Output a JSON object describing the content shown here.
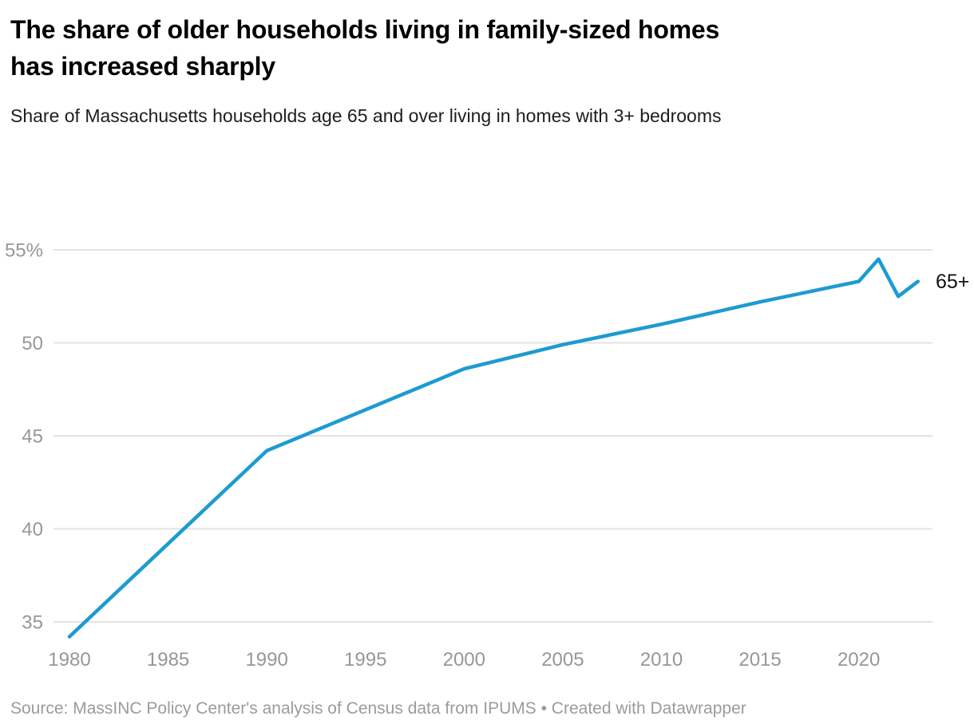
{
  "header": {
    "title_lines": [
      "The share of older households living in family-sized homes",
      "has increased sharply"
    ],
    "subtitle": "Share of Massachusetts households age 65 and over living in homes with 3+ bedrooms"
  },
  "chart_data": {
    "type": "line",
    "title": "The share of older households living in family-sized homes has increased sharply",
    "subtitle": "Share of Massachusetts households age 65 and over living in homes with 3+ bedrooms",
    "xlabel": "",
    "ylabel": "",
    "xlim": [
      1980,
      2023
    ],
    "ylim": [
      34,
      55
    ],
    "grid": "horizontal",
    "legend_position": "end-of-line-label",
    "line_color": "#1d9bd1",
    "grid_color": "#e3e3e3",
    "tick_color": "#979797",
    "x_ticks": [
      1980,
      1985,
      1990,
      1995,
      2000,
      2005,
      2010,
      2015,
      2020
    ],
    "y_ticks": [
      {
        "label": "55%",
        "value": 55
      },
      {
        "label": "50",
        "value": 50
      },
      {
        "label": "45",
        "value": 45
      },
      {
        "label": "40",
        "value": 40
      },
      {
        "label": "35",
        "value": 35
      }
    ],
    "series": [
      {
        "name": "65+",
        "x": [
          1980,
          1990,
          2000,
          2005,
          2010,
          2015,
          2020,
          2021,
          2022,
          2023
        ],
        "values": [
          34.2,
          44.2,
          48.6,
          49.9,
          51.0,
          52.2,
          53.3,
          54.5,
          52.5,
          53.3
        ]
      }
    ]
  },
  "footer": {
    "source": "Source: MassINC Policy Center's analysis of Census data from IPUMS",
    "separator": "•",
    "attribution": "Created with Datawrapper"
  }
}
